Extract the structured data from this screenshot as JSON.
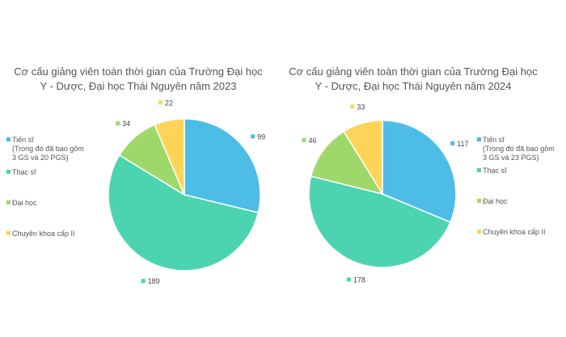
{
  "chart_data": [
    {
      "type": "pie",
      "title": "Cơ cấu giảng viên toàn thời gian của Trường Đại học Y - Dược, Đại học Thái Nguyên năm 2023",
      "legend_position": "left",
      "slices": [
        {
          "label": "Tiến sĩ",
          "note": [
            "(Trong đó đã bao gồm",
            "3 GS và 20 PGS)"
          ],
          "value": 99,
          "color": "#4dbde8"
        },
        {
          "label": "Thạc sĩ",
          "note": [],
          "value": 189,
          "color": "#4cd4b0"
        },
        {
          "label": "Đại học",
          "note": [],
          "value": 34,
          "color": "#9ed86a"
        },
        {
          "label": "Chuyên khoa cấp II",
          "note": [],
          "value": 22,
          "color": "#fdd457"
        }
      ]
    },
    {
      "type": "pie",
      "title": "Cơ cấu giảng viên toàn thời gian của Trường Đại học Y - Dược, Đại học Thái Nguyên năm 2024",
      "legend_position": "right",
      "slices": [
        {
          "label": "Tiến sĩ",
          "note": [
            "(Trong đó đã bao gồm",
            "3 GS và 23 PGS)"
          ],
          "value": 117,
          "color": "#4dbde8"
        },
        {
          "label": "Thạc sĩ",
          "note": [],
          "value": 178,
          "color": "#4cd4b0"
        },
        {
          "label": "Đại học",
          "note": [],
          "value": 46,
          "color": "#9ed86a"
        },
        {
          "label": "Chuyên khoa cấp II",
          "note": [],
          "value": 33,
          "color": "#fdd457"
        }
      ]
    }
  ]
}
